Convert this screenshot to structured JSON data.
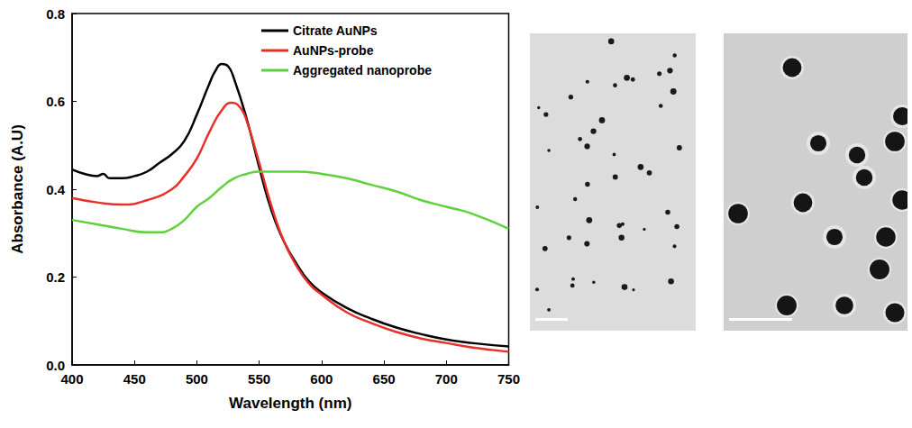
{
  "chart_data": {
    "type": "line",
    "x_label": "Wavelength (nm)",
    "y_label": "Absorbance (A.U)",
    "xlim": [
      400,
      750
    ],
    "xticks": [
      400,
      450,
      500,
      550,
      600,
      650,
      700,
      750
    ],
    "ylim": [
      0,
      0.8
    ],
    "yticks": [
      {
        "value": 0,
        "label": "0.0"
      },
      0.2,
      0.4,
      0.6,
      0.8
    ],
    "grid": false,
    "legend": "upper right",
    "series": [
      {
        "name": "Citrate AuNPs",
        "color": "#000000",
        "x": [
          400,
          410,
          420,
          425,
          430,
          440,
          450,
          460,
          470,
          480,
          490,
          500,
          510,
          515,
          520,
          525,
          530,
          540,
          550,
          560,
          570,
          580,
          590,
          600,
          620,
          640,
          660,
          680,
          700,
          720,
          750
        ],
        "values": [
          0.445,
          0.435,
          0.43,
          0.435,
          0.425,
          0.425,
          0.43,
          0.44,
          0.46,
          0.48,
          0.51,
          0.57,
          0.64,
          0.67,
          0.685,
          0.68,
          0.65,
          0.56,
          0.45,
          0.35,
          0.28,
          0.23,
          0.19,
          0.165,
          0.13,
          0.105,
          0.085,
          0.07,
          0.058,
          0.05,
          0.042
        ]
      },
      {
        "name": "AuNPs-probe",
        "color": "#e8302a",
        "x": [
          400,
          420,
          440,
          460,
          480,
          490,
          500,
          510,
          520,
          528,
          535,
          540,
          550,
          560,
          570,
          580,
          590,
          600,
          620,
          640,
          660,
          680,
          700,
          720,
          750
        ],
        "values": [
          0.38,
          0.37,
          0.365,
          0.375,
          0.4,
          0.43,
          0.47,
          0.53,
          0.58,
          0.597,
          0.585,
          0.555,
          0.46,
          0.36,
          0.28,
          0.225,
          0.185,
          0.16,
          0.12,
          0.095,
          0.075,
          0.06,
          0.05,
          0.04,
          0.03
        ]
      },
      {
        "name": "Aggregated nanoprobe",
        "color": "#5fd13c",
        "x": [
          400,
          420,
          440,
          460,
          470,
          480,
          490,
          500,
          510,
          520,
          530,
          540,
          550,
          560,
          570,
          580,
          600,
          620,
          640,
          660,
          680,
          700,
          720,
          750
        ],
        "values": [
          0.33,
          0.32,
          0.31,
          0.302,
          0.302,
          0.31,
          0.33,
          0.36,
          0.38,
          0.405,
          0.425,
          0.435,
          0.44,
          0.44,
          0.44,
          0.44,
          0.435,
          0.425,
          0.41,
          0.395,
          0.375,
          0.36,
          0.345,
          0.31
        ]
      }
    ]
  }
}
